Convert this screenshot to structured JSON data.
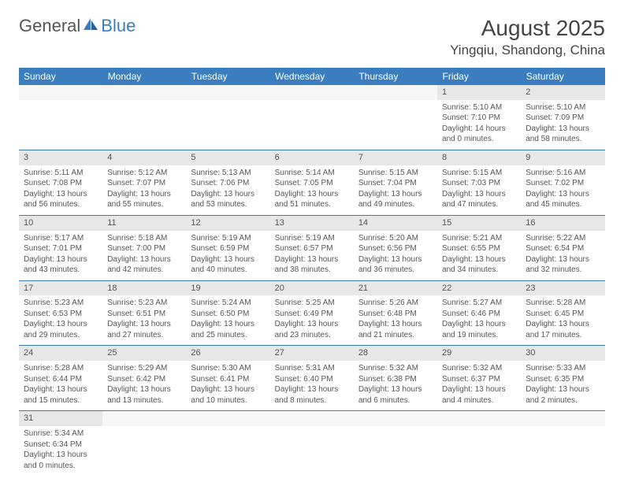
{
  "logo": {
    "text1": "General",
    "text2": "Blue"
  },
  "title": "August 2025",
  "location": "Yingqiu, Shandong, China",
  "colors": {
    "header_bg": "#3b7ec0",
    "header_text": "#ffffff",
    "daynum_bg": "#e7e7e7",
    "border": "#3b7ec0",
    "text": "#555555"
  },
  "weekdays": [
    "Sunday",
    "Monday",
    "Tuesday",
    "Wednesday",
    "Thursday",
    "Friday",
    "Saturday"
  ],
  "weeks": [
    [
      null,
      null,
      null,
      null,
      null,
      {
        "d": "1",
        "sr": "5:10 AM",
        "ss": "7:10 PM",
        "dl": "14 hours and 0 minutes."
      },
      {
        "d": "2",
        "sr": "5:10 AM",
        "ss": "7:09 PM",
        "dl": "13 hours and 58 minutes."
      }
    ],
    [
      {
        "d": "3",
        "sr": "5:11 AM",
        "ss": "7:08 PM",
        "dl": "13 hours and 56 minutes."
      },
      {
        "d": "4",
        "sr": "5:12 AM",
        "ss": "7:07 PM",
        "dl": "13 hours and 55 minutes."
      },
      {
        "d": "5",
        "sr": "5:13 AM",
        "ss": "7:06 PM",
        "dl": "13 hours and 53 minutes."
      },
      {
        "d": "6",
        "sr": "5:14 AM",
        "ss": "7:05 PM",
        "dl": "13 hours and 51 minutes."
      },
      {
        "d": "7",
        "sr": "5:15 AM",
        "ss": "7:04 PM",
        "dl": "13 hours and 49 minutes."
      },
      {
        "d": "8",
        "sr": "5:15 AM",
        "ss": "7:03 PM",
        "dl": "13 hours and 47 minutes."
      },
      {
        "d": "9",
        "sr": "5:16 AM",
        "ss": "7:02 PM",
        "dl": "13 hours and 45 minutes."
      }
    ],
    [
      {
        "d": "10",
        "sr": "5:17 AM",
        "ss": "7:01 PM",
        "dl": "13 hours and 43 minutes."
      },
      {
        "d": "11",
        "sr": "5:18 AM",
        "ss": "7:00 PM",
        "dl": "13 hours and 42 minutes."
      },
      {
        "d": "12",
        "sr": "5:19 AM",
        "ss": "6:59 PM",
        "dl": "13 hours and 40 minutes."
      },
      {
        "d": "13",
        "sr": "5:19 AM",
        "ss": "6:57 PM",
        "dl": "13 hours and 38 minutes."
      },
      {
        "d": "14",
        "sr": "5:20 AM",
        "ss": "6:56 PM",
        "dl": "13 hours and 36 minutes."
      },
      {
        "d": "15",
        "sr": "5:21 AM",
        "ss": "6:55 PM",
        "dl": "13 hours and 34 minutes."
      },
      {
        "d": "16",
        "sr": "5:22 AM",
        "ss": "6:54 PM",
        "dl": "13 hours and 32 minutes."
      }
    ],
    [
      {
        "d": "17",
        "sr": "5:23 AM",
        "ss": "6:53 PM",
        "dl": "13 hours and 29 minutes."
      },
      {
        "d": "18",
        "sr": "5:23 AM",
        "ss": "6:51 PM",
        "dl": "13 hours and 27 minutes."
      },
      {
        "d": "19",
        "sr": "5:24 AM",
        "ss": "6:50 PM",
        "dl": "13 hours and 25 minutes."
      },
      {
        "d": "20",
        "sr": "5:25 AM",
        "ss": "6:49 PM",
        "dl": "13 hours and 23 minutes."
      },
      {
        "d": "21",
        "sr": "5:26 AM",
        "ss": "6:48 PM",
        "dl": "13 hours and 21 minutes."
      },
      {
        "d": "22",
        "sr": "5:27 AM",
        "ss": "6:46 PM",
        "dl": "13 hours and 19 minutes."
      },
      {
        "d": "23",
        "sr": "5:28 AM",
        "ss": "6:45 PM",
        "dl": "13 hours and 17 minutes."
      }
    ],
    [
      {
        "d": "24",
        "sr": "5:28 AM",
        "ss": "6:44 PM",
        "dl": "13 hours and 15 minutes."
      },
      {
        "d": "25",
        "sr": "5:29 AM",
        "ss": "6:42 PM",
        "dl": "13 hours and 13 minutes."
      },
      {
        "d": "26",
        "sr": "5:30 AM",
        "ss": "6:41 PM",
        "dl": "13 hours and 10 minutes."
      },
      {
        "d": "27",
        "sr": "5:31 AM",
        "ss": "6:40 PM",
        "dl": "13 hours and 8 minutes."
      },
      {
        "d": "28",
        "sr": "5:32 AM",
        "ss": "6:38 PM",
        "dl": "13 hours and 6 minutes."
      },
      {
        "d": "29",
        "sr": "5:32 AM",
        "ss": "6:37 PM",
        "dl": "13 hours and 4 minutes."
      },
      {
        "d": "30",
        "sr": "5:33 AM",
        "ss": "6:35 PM",
        "dl": "13 hours and 2 minutes."
      }
    ],
    [
      {
        "d": "31",
        "sr": "5:34 AM",
        "ss": "6:34 PM",
        "dl": "13 hours and 0 minutes."
      },
      null,
      null,
      null,
      null,
      null,
      null
    ]
  ],
  "labels": {
    "sunrise": "Sunrise:",
    "sunset": "Sunset:",
    "daylight": "Daylight:"
  }
}
